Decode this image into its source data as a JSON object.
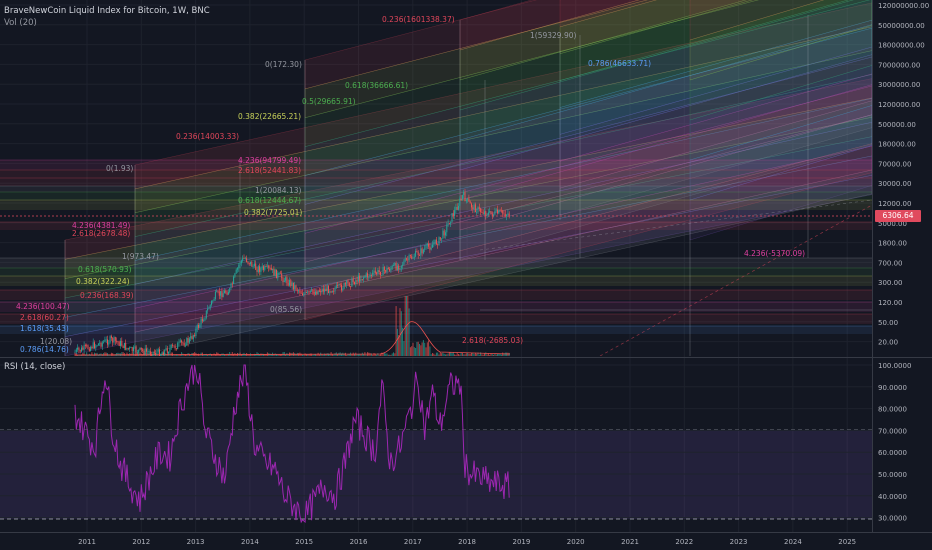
{
  "header": {
    "title": "BraveNewCoin Liquid Index for Bitcoin, 1W, BNC",
    "volume_label": "Vol (20)"
  },
  "rsi": {
    "title": "RSI (14, close)",
    "axis": [
      "100.0000",
      "90.0000",
      "80.0000",
      "70.0000",
      "60.0000",
      "50.0000",
      "40.0000",
      "30.0000"
    ],
    "bands": [
      70,
      30
    ]
  },
  "price_axis": {
    "labels": [
      "120000000.00",
      "50000000.00",
      "18000000.00",
      "7000000.00",
      "3000000.00",
      "1200000.00",
      "500000.00",
      "180000.00",
      "70000.00",
      "30000.00",
      "12000.00",
      "5000.00",
      "1800.00",
      "700.00",
      "300.00",
      "120.00",
      "50.00",
      "20.00"
    ],
    "current_price": "6306.64"
  },
  "time_axis": {
    "labels": [
      "2011",
      "2012",
      "2013",
      "2014",
      "2015",
      "2016",
      "2017",
      "2018",
      "2019",
      "2020",
      "2021",
      "2022",
      "2023",
      "2024",
      "2025"
    ]
  },
  "fib_labels": [
    {
      "text": "0.236(1601338.37)",
      "color": "#e0465a"
    },
    {
      "text": "1(59329.90)",
      "color": "#9598a1"
    },
    {
      "text": "0(172.30)",
      "color": "#9598a1"
    },
    {
      "text": "0.786(46633.71)",
      "color": "#5b9cf6"
    },
    {
      "text": "0.618(36666.61)",
      "color": "#4caf50"
    },
    {
      "text": "0.5(29665.91)",
      "color": "#4caf50"
    },
    {
      "text": "0.382(22665.21)",
      "color": "#c9d35a"
    },
    {
      "text": "0.236(14003.33)",
      "color": "#e0465a"
    },
    {
      "text": "0(1.93)",
      "color": "#9598a1"
    },
    {
      "text": "4.236(94799.49)",
      "color": "#e040a0"
    },
    {
      "text": "2.618(52441.83)",
      "color": "#e0465a"
    },
    {
      "text": "1(20084.13)",
      "color": "#9598a1"
    },
    {
      "text": "0.618(12444.67)",
      "color": "#4caf50"
    },
    {
      "text": "0.382(7725.01)",
      "color": "#c9d35a"
    },
    {
      "text": "4.236(4381.49)",
      "color": "#e040a0"
    },
    {
      "text": "2.618(2678.48)",
      "color": "#e0465a"
    },
    {
      "text": "1(973.47)",
      "color": "#9598a1"
    },
    {
      "text": "0.618(570.93)",
      "color": "#4caf50"
    },
    {
      "text": "0.382(322.24)",
      "color": "#c9d35a"
    },
    {
      "text": "0.236(168.39)",
      "color": "#e0465a"
    },
    {
      "text": "0(85.56)",
      "color": "#9598a1"
    },
    {
      "text": "4.236(100.47)",
      "color": "#e040a0"
    },
    {
      "text": "2.618(60.27)",
      "color": "#e0465a"
    },
    {
      "text": "1.618(35.43)",
      "color": "#5b9cf6"
    },
    {
      "text": "1(20.08)",
      "color": "#9598a1"
    },
    {
      "text": "0.786(14.76)",
      "color": "#5b9cf6"
    },
    {
      "text": "2.618(-2685.03)",
      "color": "#e0465a"
    },
    {
      "text": "4.236(-5370.09)",
      "color": "#e040a0"
    }
  ],
  "colors": {
    "background": "#131722",
    "candle_up": "#26a69a",
    "candle_down": "#ef5350",
    "rsi_line": "#9c27b0",
    "price_tag": "#e04a5e"
  }
}
